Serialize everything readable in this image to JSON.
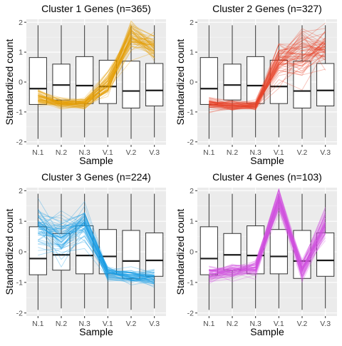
{
  "chart_data": [
    {
      "type": "box",
      "title": "Cluster 1 Genes (n=365)",
      "xlabel": "Sample",
      "ylabel": "Standardized count",
      "categories": [
        "N.1",
        "N.2",
        "N.3",
        "V.1",
        "V.2",
        "V.3"
      ],
      "ylim": [
        -2.1,
        2.1
      ],
      "yticks": [
        -2,
        -1,
        0,
        1,
        2
      ],
      "grid": true,
      "boxes": [
        {
          "whisker_low": -1.9,
          "q1": -0.75,
          "median": -0.22,
          "q3": 0.82,
          "whisker_high": 1.9
        },
        {
          "whisker_low": -1.85,
          "q1": -0.6,
          "median": -0.1,
          "q3": 0.6,
          "whisker_high": 1.9
        },
        {
          "whisker_low": -1.85,
          "q1": -0.72,
          "median": -0.12,
          "q3": 0.85,
          "whisker_high": 1.9
        },
        {
          "whisker_low": -1.85,
          "q1": -0.72,
          "median": -0.15,
          "q3": 0.73,
          "whisker_high": 1.9
        },
        {
          "whisker_low": -1.9,
          "q1": -0.87,
          "median": -0.3,
          "q3": 0.7,
          "whisker_high": 1.9
        },
        {
          "whisker_low": -1.85,
          "q1": -0.8,
          "median": -0.28,
          "q3": 0.62,
          "whisker_high": 1.9
        }
      ],
      "profile_color": "#E69F00",
      "profile_mean": [
        -0.5,
        -0.72,
        -0.72,
        -0.1,
        1.55,
        1.2
      ],
      "profile_spread": [
        0.15,
        0.1,
        0.12,
        0.28,
        0.3,
        0.3
      ]
    },
    {
      "type": "box",
      "title": "Cluster 2 Genes (n=327)",
      "xlabel": "Sample",
      "ylabel": "Standardized count",
      "categories": [
        "N.1",
        "N.2",
        "N.3",
        "V.1",
        "V.2",
        "V.3"
      ],
      "ylim": [
        -2.1,
        2.1
      ],
      "yticks": [
        -2,
        -1,
        0,
        1,
        2
      ],
      "grid": true,
      "boxes": [
        {
          "whisker_low": -1.9,
          "q1": -0.75,
          "median": -0.22,
          "q3": 0.82,
          "whisker_high": 1.9
        },
        {
          "whisker_low": -1.85,
          "q1": -0.6,
          "median": -0.1,
          "q3": 0.6,
          "whisker_high": 1.9
        },
        {
          "whisker_low": -1.85,
          "q1": -0.72,
          "median": -0.12,
          "q3": 0.85,
          "whisker_high": 1.9
        },
        {
          "whisker_low": -1.85,
          "q1": -0.72,
          "median": -0.15,
          "q3": 0.73,
          "whisker_high": 1.9
        },
        {
          "whisker_low": -1.9,
          "q1": -0.87,
          "median": -0.3,
          "q3": 0.7,
          "whisker_high": 1.9
        },
        {
          "whisker_low": -1.85,
          "q1": -0.8,
          "median": -0.28,
          "q3": 0.62,
          "whisker_high": 1.9
        }
      ],
      "profile_color": "#E8452C",
      "profile_mean": [
        -0.75,
        -0.8,
        -0.78,
        0.75,
        0.85,
        1.15
      ],
      "profile_spread": [
        0.12,
        0.1,
        0.1,
        0.35,
        0.45,
        0.4
      ]
    },
    {
      "type": "box",
      "title": "Cluster 3 Genes (n=224)",
      "xlabel": "Sample",
      "ylabel": "Standardized count",
      "categories": [
        "N.1",
        "N.2",
        "N.3",
        "V.1",
        "V.2",
        "V.3"
      ],
      "ylim": [
        -2.1,
        2.1
      ],
      "yticks": [
        -2,
        -1,
        0,
        1,
        2
      ],
      "grid": true,
      "boxes": [
        {
          "whisker_low": -1.9,
          "q1": -0.75,
          "median": -0.22,
          "q3": 0.82,
          "whisker_high": 1.9
        },
        {
          "whisker_low": -1.85,
          "q1": -0.6,
          "median": -0.1,
          "q3": 0.6,
          "whisker_high": 1.9
        },
        {
          "whisker_low": -1.85,
          "q1": -0.72,
          "median": -0.12,
          "q3": 0.85,
          "whisker_high": 1.9
        },
        {
          "whisker_low": -1.85,
          "q1": -0.72,
          "median": -0.15,
          "q3": 0.73,
          "whisker_high": 1.9
        },
        {
          "whisker_low": -1.9,
          "q1": -0.87,
          "median": -0.3,
          "q3": 0.7,
          "whisker_high": 1.9
        },
        {
          "whisker_low": -1.85,
          "q1": -0.8,
          "median": -0.28,
          "q3": 0.62,
          "whisker_high": 1.9
        }
      ],
      "profile_color": "#1A9FE6",
      "profile_mean": [
        0.85,
        0.5,
        0.85,
        -0.7,
        -0.82,
        -0.85
      ],
      "profile_spread": [
        0.45,
        0.4,
        0.4,
        0.15,
        0.12,
        0.15
      ]
    },
    {
      "type": "box",
      "title": "Cluster 4 Genes (n=103)",
      "xlabel": "Sample",
      "ylabel": "Standardized count",
      "categories": [
        "N.1",
        "N.2",
        "N.3",
        "V.1",
        "V.2",
        "V.3"
      ],
      "ylim": [
        -2.1,
        2.1
      ],
      "yticks": [
        -2,
        -1,
        0,
        1,
        2
      ],
      "grid": true,
      "boxes": [
        {
          "whisker_low": -1.9,
          "q1": -0.75,
          "median": -0.22,
          "q3": 0.82,
          "whisker_high": 1.9
        },
        {
          "whisker_low": -1.85,
          "q1": -0.6,
          "median": -0.1,
          "q3": 0.6,
          "whisker_high": 1.9
        },
        {
          "whisker_low": -1.85,
          "q1": -0.72,
          "median": -0.12,
          "q3": 0.85,
          "whisker_high": 1.9
        },
        {
          "whisker_low": -1.85,
          "q1": -0.72,
          "median": -0.15,
          "q3": 0.73,
          "whisker_high": 1.9
        },
        {
          "whisker_low": -1.9,
          "q1": -0.87,
          "median": -0.3,
          "q3": 0.7,
          "whisker_high": 1.9
        },
        {
          "whisker_low": -1.85,
          "q1": -0.8,
          "median": -0.28,
          "q3": 0.62,
          "whisker_high": 1.9
        }
      ],
      "profile_color": "#D24FE0",
      "profile_mean": [
        -0.72,
        -0.62,
        -0.55,
        1.7,
        -0.6,
        0.9
      ],
      "profile_spread": [
        0.15,
        0.15,
        0.15,
        0.25,
        0.2,
        0.35
      ]
    }
  ]
}
